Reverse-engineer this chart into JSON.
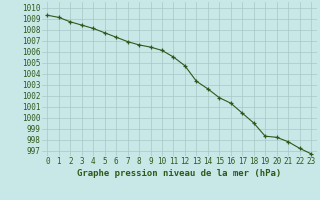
{
  "x": [
    0,
    1,
    2,
    3,
    4,
    5,
    6,
    7,
    8,
    9,
    10,
    11,
    12,
    13,
    14,
    15,
    16,
    17,
    18,
    19,
    20,
    21,
    22,
    23
  ],
  "y": [
    1009.3,
    1009.1,
    1008.7,
    1008.4,
    1008.1,
    1007.7,
    1007.3,
    1006.9,
    1006.6,
    1006.4,
    1006.1,
    1005.5,
    1004.7,
    1003.3,
    1002.6,
    1001.8,
    1001.3,
    1000.4,
    999.5,
    998.3,
    998.2,
    997.8,
    997.2,
    996.7
  ],
  "line_color": "#2d5a1b",
  "marker": "+",
  "marker_color": "#2d5a1b",
  "background_color": "#c8e8e8",
  "grid_color": "#a8c8c8",
  "xlabel": "Graphe pression niveau de la mer (hPa)",
  "xlabel_color": "#2d5a1b",
  "tick_color": "#2d5a1b",
  "ylim": [
    996.5,
    1010.5
  ],
  "yticks": [
    997,
    998,
    999,
    1000,
    1001,
    1002,
    1003,
    1004,
    1005,
    1006,
    1007,
    1008,
    1009,
    1010
  ],
  "xticks": [
    0,
    1,
    2,
    3,
    4,
    5,
    6,
    7,
    8,
    9,
    10,
    11,
    12,
    13,
    14,
    15,
    16,
    17,
    18,
    19,
    20,
    21,
    22,
    23
  ],
  "tick_fontsize": 5.5,
  "xlabel_fontsize": 6.5
}
